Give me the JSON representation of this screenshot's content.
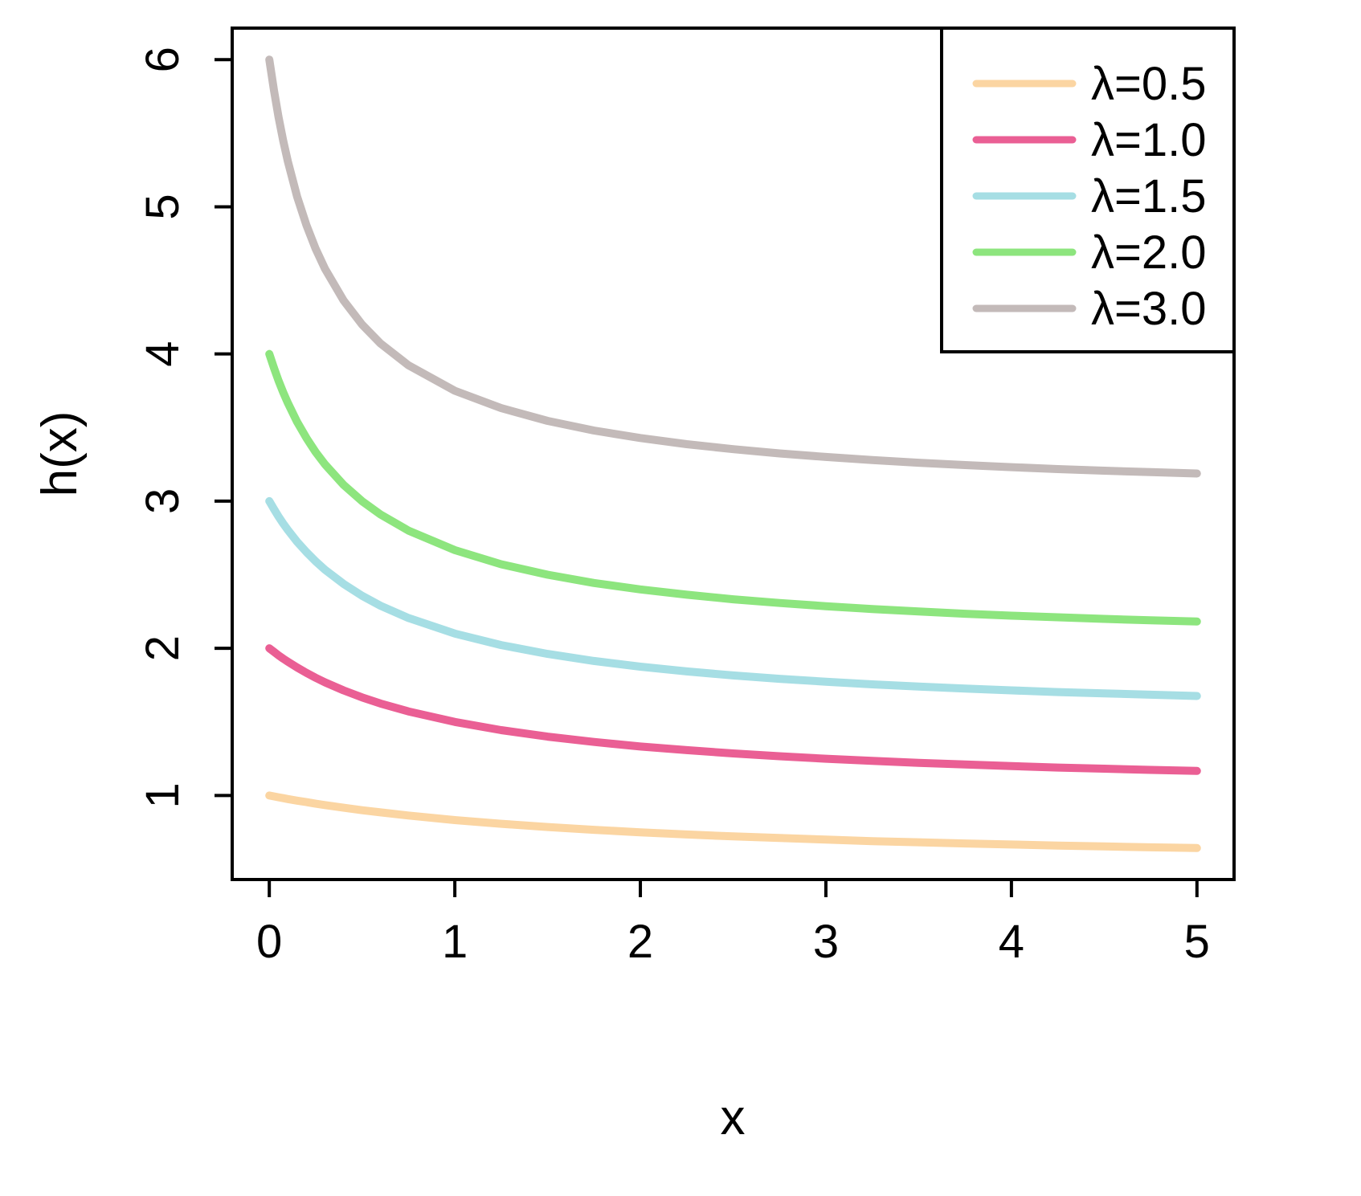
{
  "chart_data": {
    "type": "line",
    "title": "",
    "xlabel": "x",
    "ylabel": "h(x)",
    "xlim": [
      -0.2,
      5.2
    ],
    "ylim": [
      0.429,
      6.214
    ],
    "x_ticks": [
      0,
      1,
      2,
      3,
      4,
      5
    ],
    "y_ticks": [
      1,
      2,
      3,
      4,
      5,
      6
    ],
    "grid": false,
    "legend_position": "top-right",
    "frame_color": "#000000",
    "x": [
      0,
      0.025,
      0.05,
      0.075,
      0.1,
      0.15,
      0.2,
      0.25,
      0.3,
      0.4,
      0.5,
      0.6,
      0.75,
      1,
      1.25,
      1.5,
      1.75,
      2,
      2.25,
      2.5,
      2.75,
      3,
      3.25,
      3.5,
      3.75,
      4,
      4.25,
      4.5,
      4.75,
      5
    ],
    "series": [
      {
        "name": "λ=0.5",
        "color": "#FBD5A2",
        "values": [
          1,
          0.994,
          0.988,
          0.982,
          0.976,
          0.965,
          0.955,
          0.944,
          0.935,
          0.917,
          0.9,
          0.885,
          0.864,
          0.833,
          0.808,
          0.786,
          0.767,
          0.75,
          0.735,
          0.722,
          0.711,
          0.7,
          0.69,
          0.682,
          0.674,
          0.667,
          0.66,
          0.654,
          0.648,
          0.643
        ]
      },
      {
        "name": "λ=1.0",
        "color": "#EA5F94",
        "values": [
          2,
          1.976,
          1.952,
          1.93,
          1.909,
          1.87,
          1.833,
          1.8,
          1.769,
          1.714,
          1.667,
          1.625,
          1.571,
          1.5,
          1.444,
          1.4,
          1.364,
          1.333,
          1.308,
          1.286,
          1.267,
          1.25,
          1.235,
          1.222,
          1.211,
          1.2,
          1.19,
          1.182,
          1.174,
          1.167
        ]
      },
      {
        "name": "λ=1.5",
        "color": "#A6DEE4",
        "values": [
          3,
          2.946,
          2.895,
          2.848,
          2.804,
          2.724,
          2.654,
          2.591,
          2.534,
          2.438,
          2.357,
          2.289,
          2.206,
          2.1,
          2.022,
          1.962,
          1.914,
          1.875,
          1.843,
          1.816,
          1.793,
          1.773,
          1.755,
          1.74,
          1.726,
          1.714,
          1.703,
          1.694,
          1.685,
          1.676
        ]
      },
      {
        "name": "λ=2.0",
        "color": "#8DE57E",
        "values": [
          4,
          3.905,
          3.818,
          3.739,
          3.667,
          3.538,
          3.429,
          3.333,
          3.25,
          3.111,
          3,
          2.909,
          2.8,
          2.667,
          2.571,
          2.5,
          2.444,
          2.4,
          2.364,
          2.333,
          2.308,
          2.286,
          2.267,
          2.25,
          2.235,
          2.222,
          2.211,
          2.2,
          2.19,
          2.182
        ]
      },
      {
        "name": "λ=3.0",
        "color": "#C3BAB9",
        "values": [
          6,
          5.791,
          5.609,
          5.449,
          5.308,
          5.069,
          4.875,
          4.714,
          4.579,
          4.364,
          4.2,
          4.071,
          3.923,
          3.75,
          3.632,
          3.545,
          3.48,
          3.429,
          3.387,
          3.353,
          3.324,
          3.3,
          3.279,
          3.261,
          3.245,
          3.231,
          3.218,
          3.207,
          3.197,
          3.188
        ]
      }
    ]
  }
}
